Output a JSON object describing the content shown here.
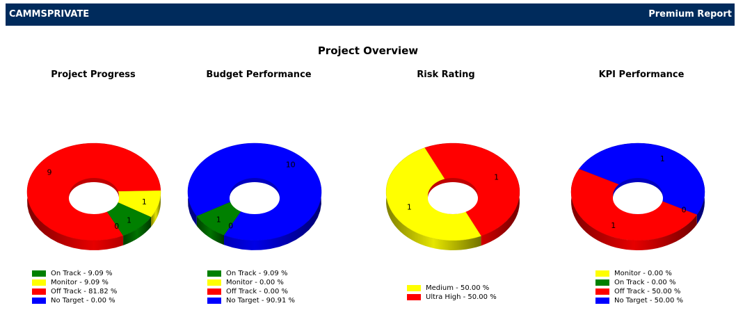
{
  "header": {
    "brand": "CAMMSPRIVATE",
    "report": "Premium Report"
  },
  "overview_title": "Project Overview",
  "chart_data": [
    {
      "type": "pie",
      "title": "Project Progress",
      "slices": [
        {
          "name": "Off Track",
          "value": 9,
          "color": "#ff0000",
          "legend": "Off Track - 81.82 %",
          "label": "9"
        },
        {
          "name": "Monitor",
          "value": 1,
          "color": "#ffff00",
          "legend": "Monitor - 9.09 %",
          "label": "1"
        },
        {
          "name": "On Track",
          "value": 1,
          "color": "#008000",
          "legend": "On Track - 9.09 %",
          "label": "1"
        },
        {
          "name": "No Target",
          "value": 0,
          "color": "#0000ff",
          "legend": "No Target - 0.00 %",
          "label": "0"
        }
      ],
      "legend_order": [
        "On Track",
        "Monitor",
        "Off Track",
        "No Target"
      ]
    },
    {
      "type": "pie",
      "title": "Budget Performance",
      "slices": [
        {
          "name": "No Target",
          "value": 10,
          "color": "#0000ff",
          "legend": "No Target - 90.91 %",
          "label": "10"
        },
        {
          "name": "Off Track",
          "value": 0,
          "color": "#ff0000",
          "legend": "Off Track - 0.00 %",
          "label": "0"
        },
        {
          "name": "On Track",
          "value": 1,
          "color": "#008000",
          "legend": "On Track - 9.09 %",
          "label": "1"
        },
        {
          "name": "Monitor",
          "value": 0,
          "color": "#ffff00",
          "legend": "Monitor - 0.00 %",
          "label": ""
        }
      ],
      "legend_order": [
        "On Track",
        "Monitor",
        "Off Track",
        "No Target"
      ]
    },
    {
      "type": "pie",
      "title": "Risk Rating",
      "slices": [
        {
          "name": "Ultra High",
          "value": 1,
          "color": "#ff0000",
          "legend": "Ultra High - 50.00 %",
          "label": "1"
        },
        {
          "name": "Medium",
          "value": 1,
          "color": "#ffff00",
          "legend": "Medium - 50.00 %",
          "label": "1"
        }
      ],
      "legend_order": [
        "Medium",
        "Ultra High"
      ]
    },
    {
      "type": "pie",
      "title": "KPI Performance",
      "slices": [
        {
          "name": "No Target",
          "value": 1,
          "color": "#0000ff",
          "legend": "No Target - 50.00 %",
          "label": "1"
        },
        {
          "name": "On Track",
          "value": 0,
          "color": "#008000",
          "legend": "On Track - 0.00 %",
          "label": "0"
        },
        {
          "name": "Off Track",
          "value": 1,
          "color": "#ff0000",
          "legend": "Off Track - 50.00 %",
          "label": "1"
        },
        {
          "name": "Monitor",
          "value": 0,
          "color": "#ffff00",
          "legend": "Monitor - 0.00 %",
          "label": ""
        }
      ],
      "legend_order": [
        "Monitor",
        "On Track",
        "Off Track",
        "No Target"
      ]
    }
  ]
}
